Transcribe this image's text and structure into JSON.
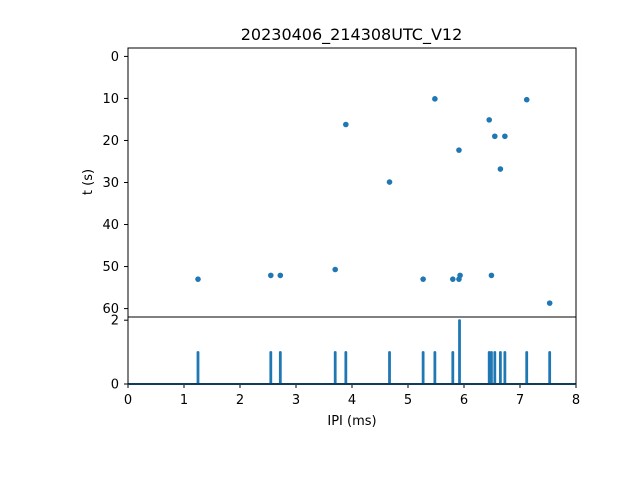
{
  "chart_data": [
    {
      "type": "scatter",
      "title": "20230406_214308UTC_V12",
      "ylabel": "t (s)",
      "xlim": [
        0,
        8
      ],
      "ylim": [
        62,
        -2
      ],
      "y_inverted": true,
      "yticks": [
        0,
        10,
        20,
        30,
        40,
        50,
        60
      ],
      "color": "#1f77b4",
      "points": [
        {
          "x": 1.25,
          "y": 53.0
        },
        {
          "x": 2.55,
          "y": 52.1
        },
        {
          "x": 2.72,
          "y": 52.1
        },
        {
          "x": 3.7,
          "y": 50.7
        },
        {
          "x": 3.89,
          "y": 16.2
        },
        {
          "x": 4.67,
          "y": 29.9
        },
        {
          "x": 5.27,
          "y": 53.0
        },
        {
          "x": 5.48,
          "y": 10.1
        },
        {
          "x": 5.8,
          "y": 53.0
        },
        {
          "x": 5.91,
          "y": 22.3
        },
        {
          "x": 5.91,
          "y": 53.0
        },
        {
          "x": 5.93,
          "y": 52.1
        },
        {
          "x": 6.45,
          "y": 15.1
        },
        {
          "x": 6.49,
          "y": 52.1
        },
        {
          "x": 6.55,
          "y": 19.0
        },
        {
          "x": 6.65,
          "y": 26.8
        },
        {
          "x": 6.73,
          "y": 19.0
        },
        {
          "x": 7.12,
          "y": 10.3
        },
        {
          "x": 7.53,
          "y": 58.7
        }
      ]
    },
    {
      "type": "line",
      "xlabel": "IPI (ms)",
      "xlim": [
        0,
        8
      ],
      "ylim": [
        0,
        2.1
      ],
      "xticks": [
        0,
        1,
        2,
        3,
        4,
        5,
        6,
        7,
        8
      ],
      "yticks": [
        0,
        2
      ],
      "color": "#1f77b4",
      "spikes": [
        {
          "x": 1.25,
          "y": 1
        },
        {
          "x": 2.55,
          "y": 1
        },
        {
          "x": 2.72,
          "y": 1
        },
        {
          "x": 3.7,
          "y": 1
        },
        {
          "x": 3.89,
          "y": 1
        },
        {
          "x": 4.67,
          "y": 1
        },
        {
          "x": 5.27,
          "y": 1
        },
        {
          "x": 5.48,
          "y": 1
        },
        {
          "x": 5.8,
          "y": 1
        },
        {
          "x": 5.92,
          "y": 2
        },
        {
          "x": 6.45,
          "y": 1
        },
        {
          "x": 6.49,
          "y": 1
        },
        {
          "x": 6.55,
          "y": 1
        },
        {
          "x": 6.65,
          "y": 1
        },
        {
          "x": 6.73,
          "y": 1
        },
        {
          "x": 7.12,
          "y": 1
        },
        {
          "x": 7.53,
          "y": 1
        }
      ]
    }
  ]
}
